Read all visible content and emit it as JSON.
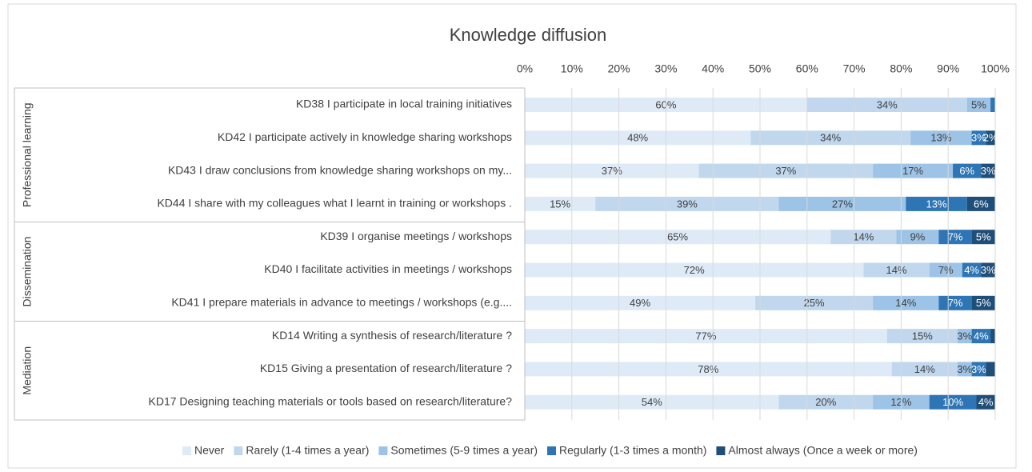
{
  "chart_data": {
    "type": "stacked-bar-horizontal",
    "title": "Knowledge diffusion",
    "groups": [
      {
        "name": "Professional learning",
        "categories": [
          "KD38 I participate in local training initiatives",
          "KD42 I participate actively in knowledge sharing workshops",
          "KD43 I draw conclusions from knowledge sharing workshops on my...",
          "KD44 I share with my colleagues what I learnt in training or workshops ."
        ]
      },
      {
        "name": "Dissemination",
        "categories": [
          "KD39 I organise meetings / workshops",
          "KD40 I facilitate activities in meetings / workshops",
          "KD41 I prepare materials in advance to meetings / workshops (e.g...."
        ]
      },
      {
        "name": "Mediation",
        "categories": [
          "KD14 Writing a synthesis of research/literature ?",
          "KD15 Giving a presentation of research/literature ?",
          "KD17 Designing teaching materials or tools based on research/literature?"
        ]
      }
    ],
    "series": [
      {
        "name": "Never",
        "color": "#deebf7",
        "values": [
          60,
          48,
          37,
          15,
          65,
          72,
          49,
          77,
          78,
          54
        ],
        "value_labels": [
          "60%",
          "48%",
          "37%",
          "15%",
          "65%",
          "72%",
          "49%",
          "77%",
          "78%",
          "54%"
        ]
      },
      {
        "name": "Rarely (1-4 times a year)",
        "color": "#c0d7ee",
        "values": [
          34,
          34,
          37,
          39,
          14,
          14,
          25,
          15,
          14,
          20
        ],
        "value_labels": [
          "34%",
          "34%",
          "37%",
          "39%",
          "14%",
          "14%",
          "25%",
          "15%",
          "14%",
          "20%"
        ]
      },
      {
        "name": "Sometimes (5-9 times a year)",
        "color": "#9dc3e6",
        "values": [
          5,
          13,
          17,
          27,
          9,
          7,
          14,
          3,
          3,
          12
        ],
        "value_labels": [
          "5%",
          "13%",
          "17%",
          "27%",
          "9%",
          "7%",
          "14%",
          "3%",
          "3%",
          "12%"
        ]
      },
      {
        "name": "Regularly (1-3 times a month)",
        "color": "#2e75b6",
        "values": [
          1,
          3,
          6,
          13,
          7,
          4,
          7,
          4,
          3,
          10
        ],
        "value_labels": [
          null,
          "3%",
          "6%",
          "13%",
          "7%",
          "4%",
          "7%",
          "4%",
          "3%",
          "10%"
        ]
      },
      {
        "name": "Almost always (Once a week or more)",
        "color": "#1f4e79",
        "values": [
          0,
          2,
          3,
          6,
          5,
          3,
          5,
          1,
          2,
          4
        ],
        "value_labels": [
          null,
          "2%",
          "3%",
          "6%",
          "5%",
          "3%",
          "5%",
          null,
          null,
          "4%"
        ]
      }
    ],
    "xlim": [
      0,
      100
    ],
    "xticks": [
      {
        "value": 0,
        "label": "0%"
      },
      {
        "value": 10,
        "label": "10%"
      },
      {
        "value": 20,
        "label": "20%"
      },
      {
        "value": 30,
        "label": "30%"
      },
      {
        "value": 40,
        "label": "40%"
      },
      {
        "value": 50,
        "label": "50%"
      },
      {
        "value": 60,
        "label": "60%"
      },
      {
        "value": 70,
        "label": "70%"
      },
      {
        "value": 80,
        "label": "80%"
      },
      {
        "value": 90,
        "label": "90%"
      },
      {
        "value": 100,
        "label": "100%"
      }
    ],
    "grid": true
  }
}
